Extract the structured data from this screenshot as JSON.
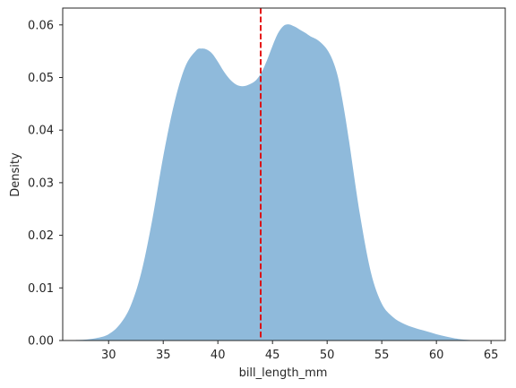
{
  "chart_data": {
    "type": "area",
    "title": "",
    "xlabel": "bill_length_mm",
    "ylabel": "Density",
    "xlim": [
      25.8,
      66.3
    ],
    "ylim": [
      0,
      0.0632
    ],
    "xticks": [
      30,
      35,
      40,
      45,
      50,
      55,
      60,
      65
    ],
    "yticks": [
      0.0,
      0.01,
      0.02,
      0.03,
      0.04,
      0.05,
      0.06
    ],
    "ytick_labels": [
      "0.00",
      "0.01",
      "0.02",
      "0.03",
      "0.04",
      "0.05",
      "0.06"
    ],
    "grid": false,
    "series": [
      {
        "color": "#8fbadb",
        "x": [
          27.0,
          28.0,
          29.0,
          30.0,
          31.0,
          32.0,
          33.0,
          34.0,
          35.0,
          36.0,
          37.0,
          38.0,
          38.5,
          39.0,
          39.5,
          40.0,
          40.5,
          41.0,
          41.5,
          42.0,
          42.5,
          43.0,
          43.5,
          44.0,
          44.5,
          45.0,
          45.5,
          46.0,
          46.5,
          47.0,
          47.5,
          48.0,
          48.5,
          49.0,
          49.5,
          50.0,
          50.5,
          51.0,
          51.5,
          52.0,
          53.0,
          54.0,
          55.0,
          56.0,
          57.0,
          58.0,
          59.0,
          60.0,
          61.0,
          62.0,
          63.0,
          64.0
        ],
        "y": [
          0.0001,
          0.0002,
          0.0005,
          0.0012,
          0.003,
          0.0065,
          0.013,
          0.023,
          0.035,
          0.045,
          0.052,
          0.0551,
          0.0555,
          0.0553,
          0.0545,
          0.053,
          0.0513,
          0.0499,
          0.0489,
          0.0484,
          0.0484,
          0.0488,
          0.0495,
          0.051,
          0.0533,
          0.056,
          0.0584,
          0.0598,
          0.0601,
          0.0597,
          0.0591,
          0.0585,
          0.0578,
          0.0573,
          0.0565,
          0.0553,
          0.0533,
          0.05,
          0.0445,
          0.038,
          0.024,
          0.013,
          0.007,
          0.0045,
          0.0032,
          0.0024,
          0.0018,
          0.0012,
          0.0007,
          0.0003,
          0.0001,
          0.0
        ]
      }
    ],
    "annotations": [
      {
        "type": "vline",
        "x": 43.92,
        "style": "dashed",
        "color": "#e30000"
      }
    ],
    "colors": {
      "axis": "#262626",
      "text": "#262626",
      "background": "#ffffff"
    }
  }
}
